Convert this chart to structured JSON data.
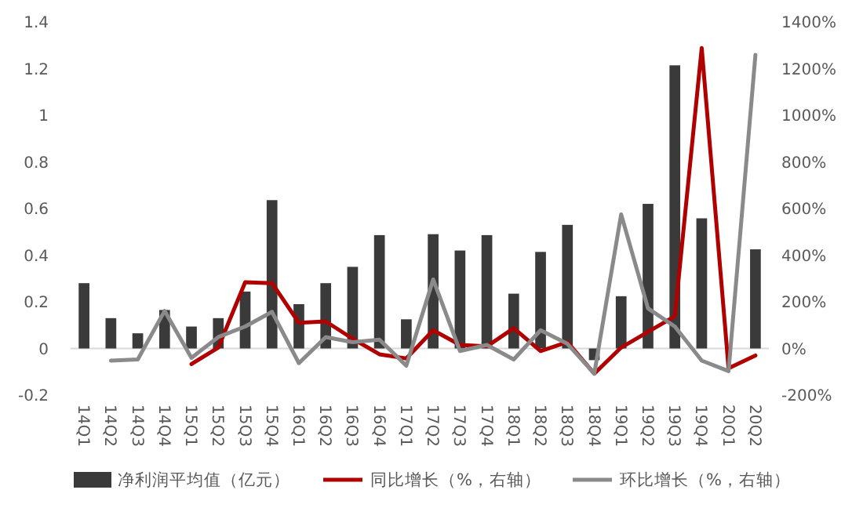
{
  "chart_data": {
    "type": "bar",
    "categories": [
      "14Q1",
      "14Q2",
      "14Q3",
      "14Q4",
      "15Q1",
      "15Q2",
      "15Q3",
      "15Q4",
      "16Q1",
      "16Q2",
      "16Q3",
      "16Q4",
      "17Q1",
      "17Q2",
      "17Q3",
      "17Q4",
      "18Q1",
      "18Q2",
      "18Q3",
      "18Q4",
      "19Q1",
      "19Q2",
      "19Q3",
      "19Q4",
      "20Q1",
      "20Q2"
    ],
    "series": [
      {
        "name": "净利润平均值（亿元）",
        "color": "#3a3a3a",
        "values": [
          0.28,
          0.13,
          0.065,
          0.165,
          0.094,
          0.13,
          0.244,
          0.636,
          0.19,
          0.28,
          0.35,
          0.486,
          0.125,
          0.49,
          0.42,
          0.486,
          0.235,
          0.414,
          0.53,
          -0.05,
          0.224,
          0.62,
          1.214,
          0.558,
          0,
          0.425
        ]
      },
      {
        "name": "同比增长（%，右轴）",
        "type": "line",
        "axis": "y2",
        "color": "#b00000",
        "values": [
          null,
          null,
          null,
          null,
          -67,
          4,
          284,
          280,
          110,
          116,
          42,
          -25,
          -43,
          78,
          15,
          9,
          87,
          -11,
          27,
          -108,
          4,
          71,
          138,
          1288,
          -85,
          -30
        ]
      },
      {
        "name": "环比增长（%，右轴）",
        "type": "line",
        "axis": "y2",
        "color": "#8a8a8a",
        "values": [
          null,
          -52,
          -47,
          161,
          -40,
          49,
          94,
          157,
          -63,
          49,
          27,
          38,
          -74,
          296,
          -11,
          15,
          -47,
          78,
          20,
          -108,
          575,
          172,
          94,
          -52,
          -97,
          1259
        ]
      }
    ],
    "ylim": [
      -0.2,
      1.4
    ],
    "yticks": [
      {
        "value": -0.2,
        "label": "-0.2"
      },
      0,
      0.2,
      0.4,
      0.6,
      0.8,
      1,
      1.2,
      1.4
    ],
    "y2lim": [
      -200,
      1400
    ],
    "y2ticks": [
      {
        "value": -200,
        "label": "-200%"
      },
      {
        "value": 0,
        "label": "0%"
      },
      {
        "value": 200,
        "label": "200%"
      },
      {
        "value": 400,
        "label": "400%"
      },
      {
        "value": 600,
        "label": "600%"
      },
      {
        "value": 800,
        "label": "800%"
      },
      {
        "value": 1000,
        "label": "1000%"
      },
      {
        "value": 1200,
        "label": "1200%"
      },
      {
        "value": 1400,
        "label": "1400%"
      }
    ],
    "legend": "bottom"
  }
}
